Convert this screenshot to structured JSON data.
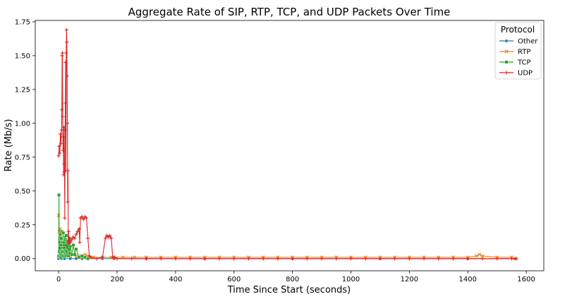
{
  "chart_data": {
    "type": "line",
    "title": "Aggregate Rate of SIP, RTP, TCP, and UDP Packets Over Time",
    "xlabel": "Time Since Start (seconds)",
    "ylabel": "Rate (Mb/s)",
    "xlim": [
      -80,
      1660
    ],
    "ylim": [
      -0.09,
      1.76
    ],
    "xticks": [
      0,
      200,
      400,
      600,
      800,
      1000,
      1200,
      1400,
      1600
    ],
    "xtick_labels": [
      "0",
      "200",
      "400",
      "600",
      "800",
      "1000",
      "1200",
      "1400",
      "1600"
    ],
    "yticks": [
      0.0,
      0.25,
      0.5,
      0.75,
      1.0,
      1.25,
      1.5,
      1.75
    ],
    "ytick_labels": [
      "0.00",
      "0.25",
      "0.50",
      "0.75",
      "1.00",
      "1.25",
      "1.50",
      "1.75"
    ],
    "grid": false,
    "legend": {
      "title": "Protocol",
      "placement": "top-right"
    },
    "series": [
      {
        "name": "Other",
        "color": "#1f77b4",
        "marker": "circle",
        "x": [
          0,
          4,
          10,
          20,
          40,
          60,
          80,
          100,
          150,
          190,
          300,
          500,
          800,
          1100,
          1400,
          1560
        ],
        "y": [
          0.0,
          0.01,
          0.0,
          0.0,
          0.0,
          0.0,
          0.0,
          0.0,
          0.0,
          0.0,
          0.0,
          0.0,
          0.0,
          0.0,
          0.0,
          0.0
        ]
      },
      {
        "name": "RTP",
        "color": "#ff7f0e",
        "marker": "x",
        "x": [
          0,
          2,
          5,
          8,
          12,
          16,
          20,
          25,
          30,
          40,
          50,
          60,
          70,
          80,
          90,
          100,
          120,
          150,
          180,
          190,
          220,
          260,
          300,
          350,
          400,
          450,
          500,
          550,
          600,
          650,
          700,
          750,
          800,
          850,
          900,
          950,
          1000,
          1050,
          1100,
          1150,
          1200,
          1250,
          1300,
          1350,
          1400,
          1430,
          1440,
          1450,
          1500,
          1550,
          1565
        ],
        "y": [
          0.32,
          0.2,
          0.22,
          0.1,
          0.08,
          0.06,
          0.04,
          0.03,
          0.04,
          0.02,
          0.03,
          0.02,
          0.02,
          0.01,
          0.03,
          0.02,
          0.01,
          0.01,
          0.01,
          0.01,
          0.01,
          0.01,
          0.01,
          0.01,
          0.01,
          0.01,
          0.01,
          0.01,
          0.01,
          0.01,
          0.01,
          0.01,
          0.01,
          0.01,
          0.01,
          0.01,
          0.01,
          0.01,
          0.01,
          0.01,
          0.01,
          0.01,
          0.01,
          0.01,
          0.01,
          0.02,
          0.03,
          0.02,
          0.01,
          0.01,
          0.0
        ]
      },
      {
        "name": "TCP",
        "color": "#2ca02c",
        "marker": "square",
        "x": [
          0,
          1,
          2,
          3,
          4,
          5,
          6,
          7,
          8,
          9,
          10,
          11,
          12,
          13,
          14,
          15,
          16,
          17,
          18,
          19,
          20,
          21,
          22,
          23,
          24,
          25,
          26,
          27,
          28,
          30,
          32,
          34,
          36,
          38,
          40,
          45,
          50,
          55,
          60,
          70,
          80,
          90,
          100
        ],
        "y": [
          0.02,
          0.47,
          0.05,
          0.12,
          0.02,
          0.18,
          0.04,
          0.1,
          0.01,
          0.15,
          0.03,
          0.2,
          0.05,
          0.08,
          0.12,
          0.02,
          0.19,
          0.05,
          0.12,
          0.08,
          0.02,
          0.16,
          0.04,
          0.14,
          0.06,
          0.02,
          0.17,
          0.05,
          0.13,
          0.03,
          0.12,
          0.02,
          0.15,
          0.04,
          0.09,
          0.03,
          0.1,
          0.03,
          0.07,
          0.01,
          0.02,
          0.01,
          0.0
        ]
      },
      {
        "name": "UDP",
        "color": "#d62728",
        "marker": "plus",
        "x": [
          0,
          2,
          4,
          6,
          8,
          10,
          11,
          12,
          13,
          14,
          15,
          16,
          17,
          18,
          19,
          20,
          21,
          22,
          23,
          24,
          25,
          26,
          27,
          28,
          29,
          30,
          31,
          32,
          33,
          34,
          35,
          36,
          37,
          38,
          40,
          45,
          50,
          55,
          60,
          65,
          70,
          72,
          75,
          80,
          85,
          90,
          95,
          100,
          105,
          110,
          130,
          150,
          160,
          165,
          170,
          175,
          180,
          185,
          190,
          200,
          250,
          300,
          350,
          400,
          450,
          500,
          550,
          600,
          650,
          700,
          750,
          800,
          850,
          900,
          950,
          1000,
          1050,
          1100,
          1150,
          1200,
          1250,
          1300,
          1350,
          1400,
          1450,
          1500,
          1550,
          1565
        ],
        "y": [
          0.76,
          0.83,
          0.78,
          0.92,
          0.85,
          0.95,
          1.1,
          1.5,
          1.52,
          1.05,
          0.8,
          0.9,
          0.62,
          0.97,
          0.7,
          0.64,
          0.3,
          0.95,
          1.15,
          1.45,
          0.65,
          1.52,
          1.69,
          1.6,
          1.35,
          1.0,
          0.42,
          0.65,
          0.12,
          0.2,
          0.13,
          0.11,
          0.14,
          0.15,
          0.12,
          0.14,
          0.16,
          0.15,
          0.18,
          0.2,
          0.22,
          0.12,
          0.3,
          0.31,
          0.29,
          0.31,
          0.3,
          0.15,
          0.02,
          0.01,
          0.0,
          0.01,
          0.15,
          0.17,
          0.16,
          0.17,
          0.15,
          0.01,
          0.01,
          0.0,
          0.0,
          0.0,
          0.0,
          0.0,
          0.0,
          0.0,
          0.0,
          0.0,
          0.0,
          0.0,
          0.0,
          0.0,
          0.0,
          0.0,
          0.0,
          0.0,
          0.0,
          0.0,
          0.0,
          0.0,
          0.0,
          0.0,
          0.0,
          0.0,
          0.0,
          0.0,
          0.0,
          0.0
        ]
      }
    ]
  }
}
